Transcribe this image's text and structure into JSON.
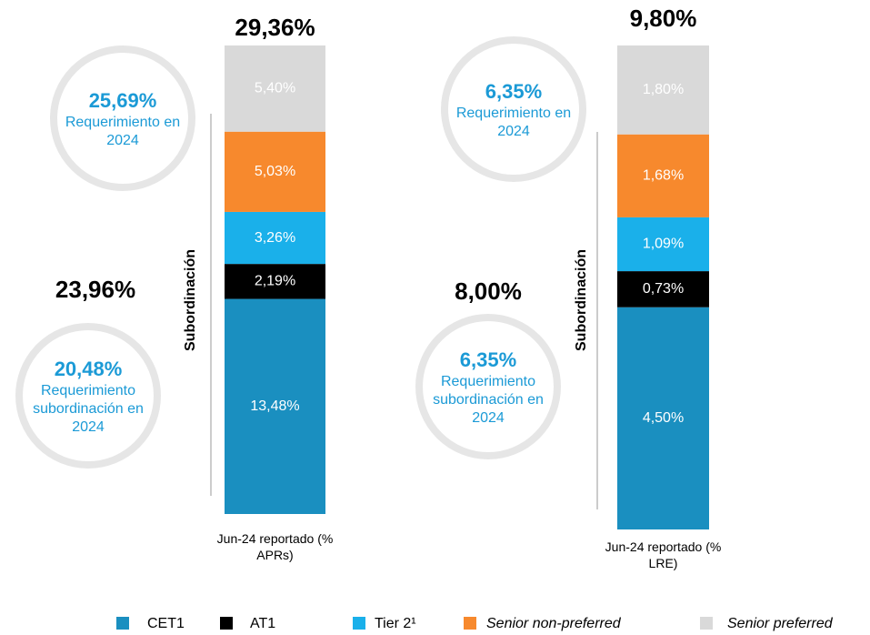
{
  "chart_data": [
    {
      "type": "bar",
      "categories": [
        "Jun-24 reportado (% APRs)"
      ],
      "ylim": [
        0,
        29.36
      ],
      "total": "29,36%",
      "subordination": {
        "label": "Subordinación",
        "total": "23,96%"
      },
      "requirement": {
        "value_label": "25,69%",
        "text": "Requerimiento en 2024"
      },
      "subordination_requirement": {
        "value_label": "20,48%",
        "text": "Requerimiento subordinación en 2024"
      },
      "series": [
        {
          "name": "CET1",
          "color": "#1a8fc0",
          "values": [
            13.48
          ],
          "value_labels": [
            "13,48%"
          ]
        },
        {
          "name": "AT1",
          "color": "#000000",
          "values": [
            2.19
          ],
          "value_labels": [
            "2,19%"
          ]
        },
        {
          "name": "Tier 2¹",
          "color": "#1ab0ea",
          "values": [
            3.26
          ],
          "value_labels": [
            "3,26%"
          ]
        },
        {
          "name": "Senior non-preferred",
          "color": "#f7892d",
          "values": [
            5.03
          ],
          "value_labels": [
            "5,03%"
          ],
          "italic": true
        },
        {
          "name": "Senior preferred",
          "color": "#d9d9d9",
          "values": [
            5.4
          ],
          "value_labels": [
            "5,40%"
          ],
          "italic": true
        }
      ]
    },
    {
      "type": "bar",
      "categories": [
        "Jun-24 reportado (% LRE)"
      ],
      "ylim": [
        0,
        9.8
      ],
      "total": "9,80%",
      "subordination": {
        "label": "Subordinación",
        "total": "8,00%"
      },
      "requirement": {
        "value_label": "6,35%",
        "text": "Requerimiento en 2024"
      },
      "subordination_requirement": {
        "value_label": "6,35%",
        "text": "Requerimiento subordinación en 2024"
      },
      "series": [
        {
          "name": "CET1",
          "color": "#1a8fc0",
          "values": [
            4.5
          ],
          "value_labels": [
            "4,50%"
          ]
        },
        {
          "name": "AT1",
          "color": "#000000",
          "values": [
            0.73
          ],
          "value_labels": [
            "0,73%"
          ]
        },
        {
          "name": "Tier 2¹",
          "color": "#1ab0ea",
          "values": [
            1.09
          ],
          "value_labels": [
            "1,09%"
          ]
        },
        {
          "name": "Senior non-preferred",
          "color": "#f7892d",
          "values": [
            1.68
          ],
          "value_labels": [
            "1,68%"
          ],
          "italic": true
        },
        {
          "name": "Senior preferred",
          "color": "#d9d9d9",
          "values": [
            1.8
          ],
          "value_labels": [
            "1,80%"
          ],
          "italic": true
        }
      ]
    }
  ]
}
